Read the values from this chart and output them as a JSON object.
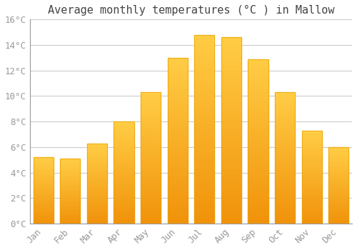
{
  "title": "Average monthly temperatures (°C ) in Mallow",
  "months": [
    "Jan",
    "Feb",
    "Mar",
    "Apr",
    "May",
    "Jun",
    "Jul",
    "Aug",
    "Sep",
    "Oct",
    "Nov",
    "Dec"
  ],
  "values": [
    5.2,
    5.1,
    6.3,
    8.0,
    10.3,
    13.0,
    14.8,
    14.6,
    12.9,
    10.3,
    7.3,
    6.0
  ],
  "bar_color_top": "#FFCC44",
  "bar_color_bottom": "#F0920A",
  "bar_edge_color": "#E8A000",
  "background_color": "#FFFFFF",
  "grid_color": "#CCCCCC",
  "ylim": [
    0,
    16
  ],
  "ytick_step": 2,
  "title_fontsize": 11,
  "tick_fontsize": 9,
  "tick_label_color": "#999999",
  "title_color": "#444444"
}
